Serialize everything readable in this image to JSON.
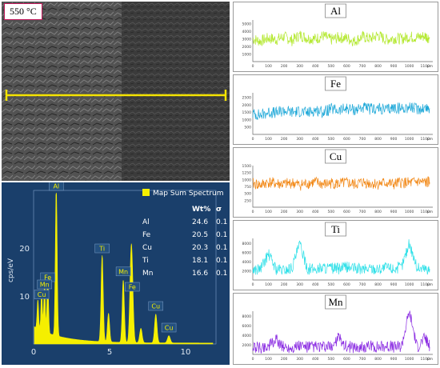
{
  "sem": {
    "label": "550 °C",
    "line_color": "#f5e400"
  },
  "eds": {
    "legend": "Map Sum Spectrum",
    "table_headers": [
      "",
      "Wt%",
      "σ"
    ],
    "table_rows": [
      [
        "Al",
        "24.6",
        "0.1"
      ],
      [
        "Fe",
        "20.5",
        "0.1"
      ],
      [
        "Cu",
        "20.3",
        "0.1"
      ],
      [
        "Ti",
        "18.1",
        "0.1"
      ],
      [
        "Mn",
        "16.6",
        "0.1"
      ]
    ],
    "ylabel": "cps/eV",
    "xticks": [
      "0",
      "5",
      "10"
    ],
    "yticks": [
      "20",
      "10"
    ],
    "peak_labels": [
      "Al",
      "Ti",
      "Mn",
      "Fe",
      "Cu",
      "Fe",
      "Mn",
      "Cu",
      "Cu"
    ],
    "colors": {
      "background": "#1a3f6b",
      "spectrum": "#f5ef00"
    }
  },
  "chart_data": [
    {
      "type": "line",
      "title": "Al",
      "color": "#b2e82b",
      "unit": "µm",
      "xlim": [
        0,
        1150
      ],
      "ylim": [
        0,
        5500
      ],
      "xticks": [
        "0",
        "100",
        "200",
        "300",
        "400",
        "500",
        "600",
        "700",
        "800",
        "900",
        "1000",
        "1100"
      ],
      "yticks": [
        "1000",
        "2000",
        "3000",
        "4000",
        "5000"
      ],
      "x": [
        0,
        50,
        100,
        150,
        200,
        250,
        300,
        350,
        400,
        450,
        500,
        550,
        600,
        650,
        700,
        750,
        800,
        850,
        900,
        950,
        1000,
        1050,
        1100,
        1130
      ],
      "values": [
        3000,
        2700,
        3100,
        2900,
        3300,
        2800,
        3500,
        3100,
        3000,
        3400,
        2900,
        3200,
        3100,
        2700,
        3300,
        3000,
        3500,
        2900,
        3100,
        3000,
        3300,
        3200,
        3400,
        3100
      ]
    },
    {
      "type": "line",
      "title": "Fe",
      "color": "#1ea8d8",
      "unit": "µm",
      "xlim": [
        0,
        1150
      ],
      "ylim": [
        0,
        2800
      ],
      "xticks": [
        "0",
        "100",
        "200",
        "300",
        "400",
        "500",
        "600",
        "700",
        "800",
        "900",
        "1000",
        "1100"
      ],
      "yticks": [
        "500",
        "1000",
        "1500",
        "2000",
        "2500"
      ],
      "x": [
        0,
        50,
        100,
        150,
        200,
        250,
        300,
        350,
        400,
        450,
        500,
        550,
        600,
        650,
        700,
        750,
        800,
        850,
        900,
        950,
        1000,
        1050,
        1100,
        1130
      ],
      "values": [
        1400,
        1300,
        1500,
        1450,
        1600,
        1500,
        1550,
        1450,
        1650,
        1500,
        1700,
        1600,
        1750,
        1650,
        1800,
        1700,
        1750,
        1650,
        1800,
        1750,
        1850,
        1700,
        1800,
        1750
      ]
    },
    {
      "type": "line",
      "title": "Cu",
      "color": "#f28a1a",
      "unit": "µm",
      "xlim": [
        0,
        1150
      ],
      "ylim": [
        0,
        1500
      ],
      "xticks": [
        "0",
        "100",
        "200",
        "300",
        "400",
        "500",
        "600",
        "700",
        "800",
        "900",
        "1000",
        "1100"
      ],
      "yticks": [
        "250",
        "500",
        "750",
        "1000",
        "1250",
        "1500"
      ],
      "x": [
        0,
        50,
        100,
        150,
        200,
        250,
        300,
        350,
        400,
        450,
        500,
        550,
        600,
        650,
        700,
        750,
        800,
        850,
        900,
        950,
        1000,
        1050,
        1100,
        1130
      ],
      "values": [
        850,
        800,
        900,
        850,
        820,
        880,
        800,
        860,
        900,
        820,
        870,
        840,
        880,
        820,
        900,
        860,
        840,
        880,
        820,
        900,
        860,
        920,
        880,
        900
      ]
    },
    {
      "type": "line",
      "title": "Ti",
      "color": "#2ee0e8",
      "unit": "µm",
      "xlim": [
        0,
        1150
      ],
      "ylim": [
        0,
        9000
      ],
      "xticks": [
        "0",
        "100",
        "200",
        "300",
        "400",
        "500",
        "600",
        "700",
        "800",
        "900",
        "1000",
        "1100"
      ],
      "yticks": [
        "2000",
        "4000",
        "6000",
        "8000"
      ],
      "x": [
        0,
        50,
        100,
        150,
        200,
        250,
        300,
        350,
        400,
        450,
        500,
        550,
        600,
        650,
        700,
        750,
        800,
        850,
        900,
        950,
        1000,
        1050,
        1100,
        1130
      ],
      "values": [
        2200,
        2400,
        5600,
        2300,
        2100,
        2600,
        7800,
        2400,
        2300,
        2700,
        2500,
        2400,
        2800,
        2500,
        2300,
        2600,
        2400,
        2700,
        2500,
        2800,
        8000,
        2600,
        2500,
        2400
      ]
    },
    {
      "type": "line",
      "title": "Mn",
      "color": "#8a2be2",
      "unit": "µm",
      "xlim": [
        0,
        1150
      ],
      "ylim": [
        0,
        9000
      ],
      "xticks": [
        "0",
        "100",
        "200",
        "300",
        "400",
        "500",
        "600",
        "700",
        "800",
        "900",
        "1000",
        "1100"
      ],
      "yticks": [
        "2000",
        "4000",
        "6000",
        "8000"
      ],
      "x": [
        0,
        50,
        100,
        150,
        200,
        250,
        300,
        350,
        400,
        450,
        500,
        550,
        600,
        650,
        700,
        750,
        800,
        850,
        900,
        950,
        1000,
        1050,
        1100,
        1130
      ],
      "values": [
        1500,
        1400,
        1700,
        3000,
        1500,
        1400,
        1800,
        1500,
        1600,
        1400,
        1500,
        3500,
        1600,
        1500,
        1400,
        1700,
        1600,
        1800,
        1500,
        1700,
        9000,
        1500,
        3500,
        1600
      ]
    }
  ]
}
